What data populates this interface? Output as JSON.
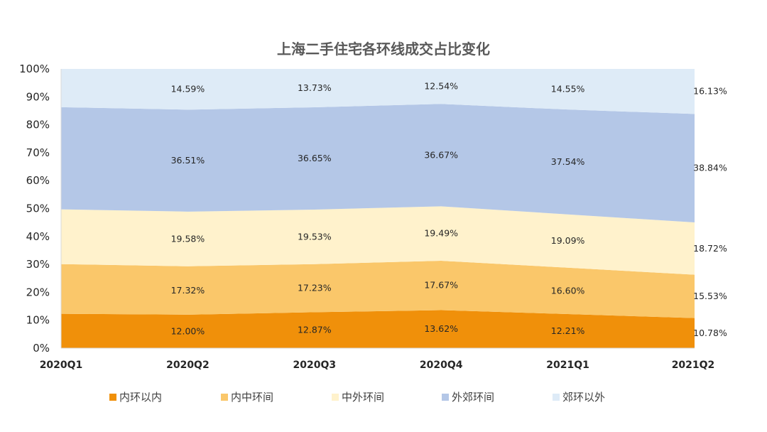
{
  "chart_data": {
    "type": "area",
    "stacked": true,
    "title": "上海二手住宅各环线成交占比变化",
    "categories": [
      "2020Q1",
      "2020Q2",
      "2020Q3",
      "2020Q4",
      "2021Q1",
      "2021Q2"
    ],
    "ylim": [
      0,
      100
    ],
    "yticks": [
      "0%",
      "10%",
      "20%",
      "30%",
      "40%",
      "50%",
      "60%",
      "70%",
      "80%",
      "90%",
      "100%"
    ],
    "grid": false,
    "legend_position": "bottom",
    "series": [
      {
        "name": "内环以内",
        "color": "#F0900A",
        "values": [
          12.3,
          12.0,
          12.87,
          13.62,
          12.21,
          10.78
        ],
        "labels": [
          "",
          "12.00%",
          "12.87%",
          "13.62%",
          "12.21%",
          "10.78%"
        ]
      },
      {
        "name": "内中环间",
        "color": "#FAC76A",
        "values": [
          17.8,
          17.32,
          17.23,
          17.67,
          16.6,
          15.53
        ],
        "labels": [
          "",
          "17.32%",
          "17.23%",
          "17.67%",
          "16.60%",
          "15.53%"
        ]
      },
      {
        "name": "中外环间",
        "color": "#FFF2CC",
        "values": [
          19.6,
          19.58,
          19.53,
          19.49,
          19.09,
          18.72
        ],
        "labels": [
          "",
          "19.58%",
          "19.53%",
          "19.49%",
          "19.09%",
          "18.72%"
        ]
      },
      {
        "name": "外郊环间",
        "color": "#B4C7E7",
        "values": [
          36.6,
          36.51,
          36.65,
          36.67,
          37.54,
          38.84
        ],
        "labels": [
          "",
          "36.51%",
          "36.65%",
          "36.67%",
          "37.54%",
          "38.84%"
        ]
      },
      {
        "name": "郊环以外",
        "color": "#DEEBF7",
        "values": [
          13.7,
          14.59,
          13.73,
          12.54,
          14.55,
          16.13
        ],
        "labels": [
          "",
          "14.59%",
          "13.73%",
          "12.54%",
          "14.55%",
          "16.13%"
        ]
      }
    ]
  }
}
